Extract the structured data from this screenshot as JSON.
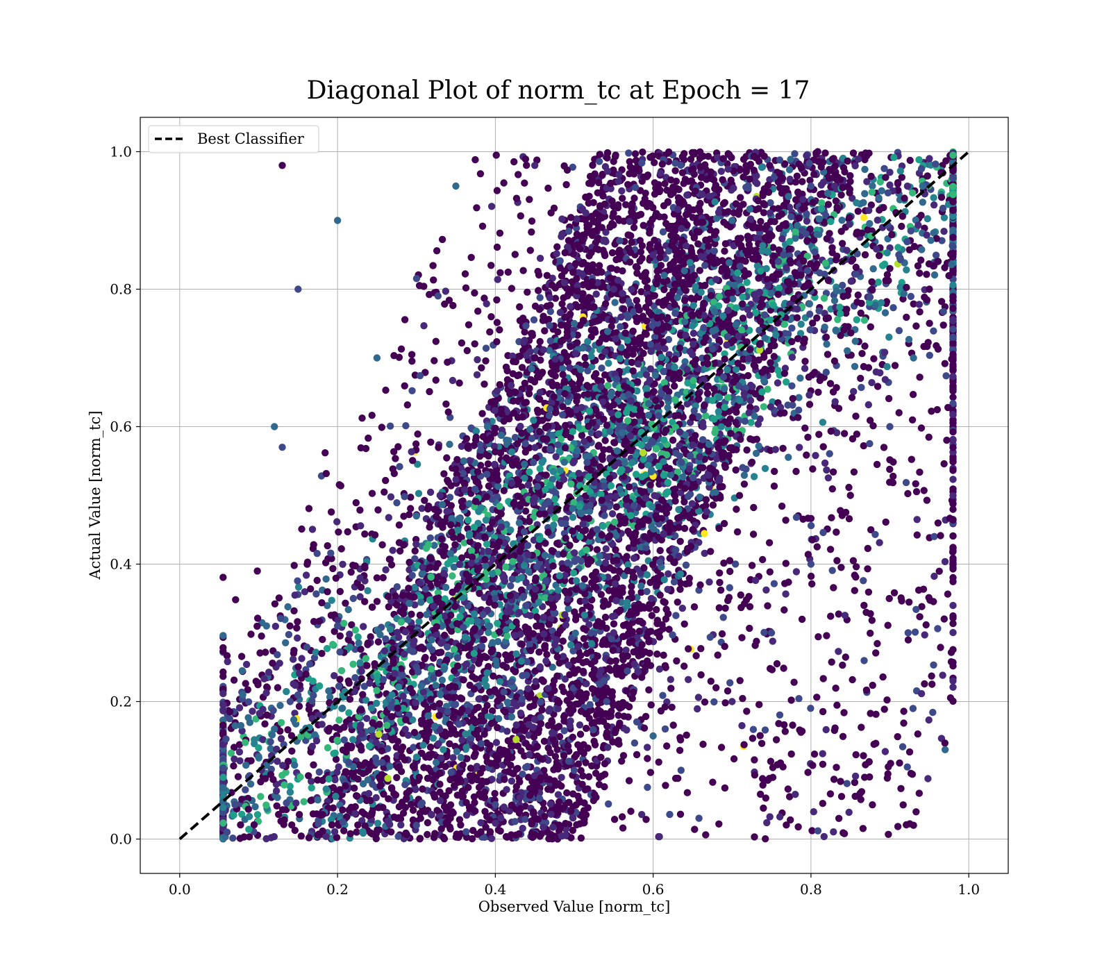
{
  "chart_data": {
    "type": "scatter",
    "title": "Diagonal Plot of norm_tc at Epoch = 17",
    "xlabel": "Observed Value [norm_tc]",
    "ylabel": "Actual Value [norm_tc]",
    "xlim": [
      -0.05,
      1.05
    ],
    "ylim": [
      -0.05,
      1.05
    ],
    "xticks": [
      "0.0",
      "0.2",
      "0.4",
      "0.6",
      "0.8",
      "1.0"
    ],
    "yticks": [
      "0.0",
      "0.2",
      "0.4",
      "0.6",
      "0.8",
      "1.0"
    ],
    "grid": true,
    "legend": {
      "placement": "top-left",
      "entries": [
        "Best Classifier"
      ]
    },
    "colormap": "viridis",
    "series": [
      {
        "name": "Best Classifier",
        "type": "line",
        "style": "dashed",
        "color": "#000000",
        "x": [
          0.0,
          1.0
        ],
        "y": [
          0.0,
          1.0
        ]
      }
    ],
    "scatter_points_sample": {
      "description_colors": [
        "#440154",
        "#482878",
        "#3e4989",
        "#31688e",
        "#26828e",
        "#1f9e89",
        "#35b779",
        "#6ece58",
        "#b5de2b",
        "#fde725"
      ],
      "points": [
        [
          0.06,
          0.01
        ],
        [
          0.07,
          0.05
        ],
        [
          0.09,
          0.08
        ],
        [
          0.1,
          0.12
        ],
        [
          0.12,
          0.16
        ],
        [
          0.14,
          0.2
        ],
        [
          0.16,
          0.24
        ],
        [
          0.18,
          0.27
        ],
        [
          0.2,
          0.31
        ],
        [
          0.22,
          0.35
        ],
        [
          0.25,
          0.38
        ],
        [
          0.27,
          0.42
        ],
        [
          0.3,
          0.47
        ],
        [
          0.33,
          0.5
        ],
        [
          0.36,
          0.55
        ],
        [
          0.39,
          0.6
        ],
        [
          0.42,
          0.66
        ],
        [
          0.45,
          0.7
        ],
        [
          0.5,
          0.75
        ],
        [
          0.55,
          0.8
        ],
        [
          0.6,
          0.85
        ],
        [
          0.7,
          0.9
        ],
        [
          0.8,
          0.95
        ],
        [
          0.9,
          0.97
        ],
        [
          0.95,
          0.99
        ],
        [
          0.3,
          0.02
        ],
        [
          0.4,
          0.05
        ],
        [
          0.5,
          0.1
        ],
        [
          0.6,
          0.15
        ],
        [
          0.7,
          0.2
        ],
        [
          0.75,
          0.3
        ],
        [
          0.8,
          0.4
        ],
        [
          0.85,
          0.5
        ],
        [
          0.9,
          0.6
        ],
        [
          0.93,
          0.7
        ],
        [
          0.95,
          0.8
        ],
        [
          0.2,
          0.9
        ],
        [
          0.15,
          0.8
        ],
        [
          0.12,
          0.6
        ],
        [
          0.25,
          0.7
        ],
        [
          0.35,
          0.95
        ],
        [
          0.45,
          0.98
        ],
        [
          0.55,
          0.3
        ],
        [
          0.65,
          0.45
        ],
        [
          0.5,
          0.55
        ],
        [
          0.4,
          0.35
        ],
        [
          0.3,
          0.25
        ],
        [
          0.6,
          0.65
        ],
        [
          0.72,
          0.85
        ],
        [
          0.82,
          0.72
        ],
        [
          0.9,
          0.83
        ],
        [
          0.83,
          0.95
        ],
        [
          0.98,
          0.23
        ],
        [
          0.97,
          0.13
        ],
        [
          0.93,
          0.02
        ],
        [
          0.08,
          0.21
        ],
        [
          0.11,
          0.31
        ],
        [
          0.13,
          0.57
        ],
        [
          0.13,
          0.98
        ]
      ]
    }
  }
}
